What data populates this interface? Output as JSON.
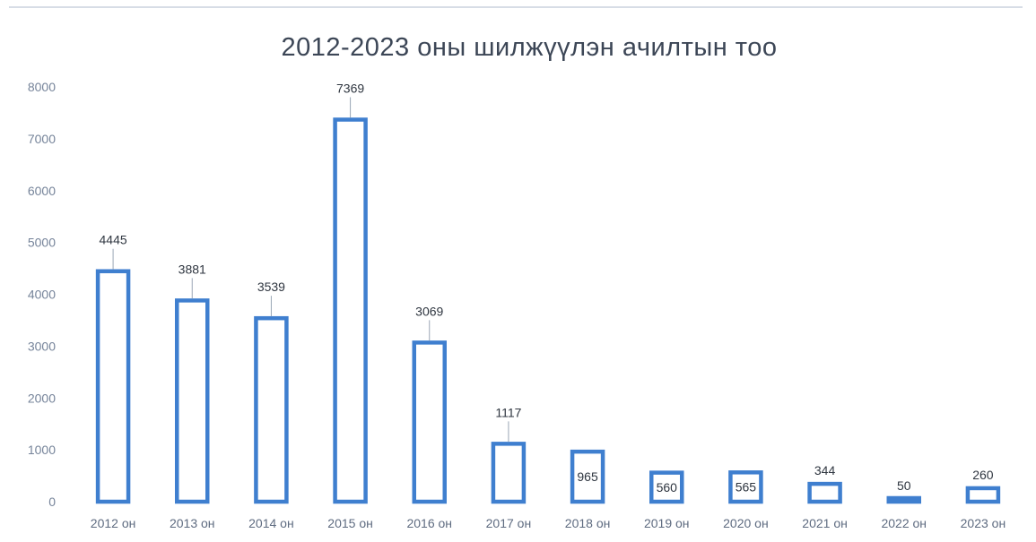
{
  "colors": {
    "bar_outline": "#3f7fcf",
    "title": "#3c4656",
    "axis_text": "#76849a"
  },
  "chart_data": {
    "type": "bar",
    "title": "2012-2023 оны шилжүүлэн ачилтын тоо",
    "xlabel": "",
    "ylabel": "",
    "ylim": [
      0,
      8000
    ],
    "yticks": [
      0,
      1000,
      2000,
      3000,
      4000,
      5000,
      6000,
      7000,
      8000
    ],
    "grid": false,
    "legend": "none",
    "categories": [
      "2012 он",
      "2013 он",
      "2014 он",
      "2015 он",
      "2016 он",
      "2017 он",
      "2018 он",
      "2019 он",
      "2020 он",
      "2021 он",
      "2022 он",
      "2023 он"
    ],
    "values": [
      4445,
      3881,
      3539,
      7369,
      3069,
      1117,
      965,
      560,
      565,
      344,
      50,
      260
    ],
    "data_labels": [
      "4445",
      "3881",
      "3539",
      "7369",
      "3069",
      "1117",
      "965",
      "560",
      "565",
      "344",
      "50",
      "260"
    ]
  }
}
